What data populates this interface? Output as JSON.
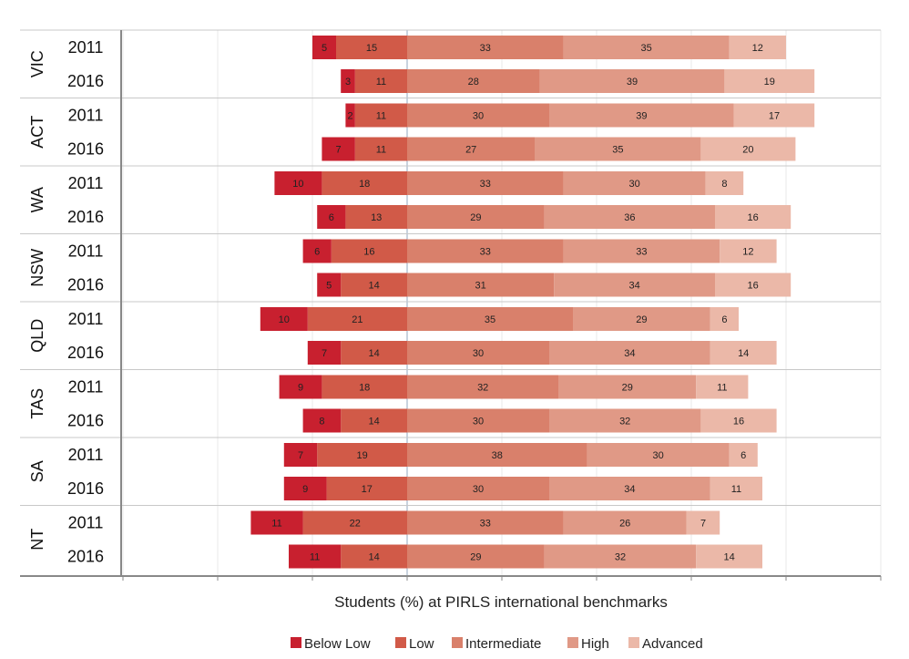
{
  "chart_data": {
    "type": "bar",
    "orientation": "horizontal-diverging",
    "xlabel": "Students (%) at PIRLS international benchmarks",
    "legend_position": "bottom",
    "grid": true,
    "series": [
      {
        "name": "Below Low",
        "color": "#c8202f"
      },
      {
        "name": "Low",
        "color": "#d15a48"
      },
      {
        "name": "Intermediate",
        "color": "#d9806b"
      },
      {
        "name": "High",
        "color": "#e09986"
      },
      {
        "name": "Advanced",
        "color": "#ebb8a8"
      }
    ],
    "groups": [
      {
        "name": "VIC",
        "rows": [
          {
            "year": "2011",
            "values": [
              5,
              15,
              33,
              35,
              12
            ]
          },
          {
            "year": "2016",
            "values": [
              3,
              11,
              28,
              39,
              19
            ]
          }
        ]
      },
      {
        "name": "ACT",
        "rows": [
          {
            "year": "2011",
            "values": [
              2,
              11,
              30,
              39,
              17
            ]
          },
          {
            "year": "2016",
            "values": [
              7,
              11,
              27,
              35,
              20
            ]
          }
        ]
      },
      {
        "name": "WA",
        "rows": [
          {
            "year": "2011",
            "values": [
              10,
              18,
              33,
              30,
              8
            ]
          },
          {
            "year": "2016",
            "values": [
              6,
              13,
              29,
              36,
              16
            ]
          }
        ]
      },
      {
        "name": "NSW",
        "rows": [
          {
            "year": "2011",
            "values": [
              6,
              16,
              33,
              33,
              12
            ]
          },
          {
            "year": "2016",
            "values": [
              5,
              14,
              31,
              34,
              16
            ]
          }
        ]
      },
      {
        "name": "QLD",
        "rows": [
          {
            "year": "2011",
            "values": [
              10,
              21,
              35,
              29,
              6
            ]
          },
          {
            "year": "2016",
            "values": [
              7,
              14,
              30,
              34,
              14
            ]
          }
        ]
      },
      {
        "name": "TAS",
        "rows": [
          {
            "year": "2011",
            "values": [
              9,
              18,
              32,
              29,
              11
            ]
          },
          {
            "year": "2016",
            "values": [
              8,
              14,
              30,
              32,
              16
            ]
          }
        ]
      },
      {
        "name": "SA",
        "rows": [
          {
            "year": "2011",
            "values": [
              7,
              19,
              38,
              30,
              6
            ]
          },
          {
            "year": "2016",
            "values": [
              9,
              17,
              30,
              34,
              11
            ]
          }
        ]
      },
      {
        "name": "NT",
        "rows": [
          {
            "year": "2011",
            "values": [
              11,
              22,
              33,
              26,
              7
            ]
          },
          {
            "year": "2016",
            "values": [
              11,
              14,
              29,
              32,
              14
            ]
          }
        ]
      }
    ]
  }
}
